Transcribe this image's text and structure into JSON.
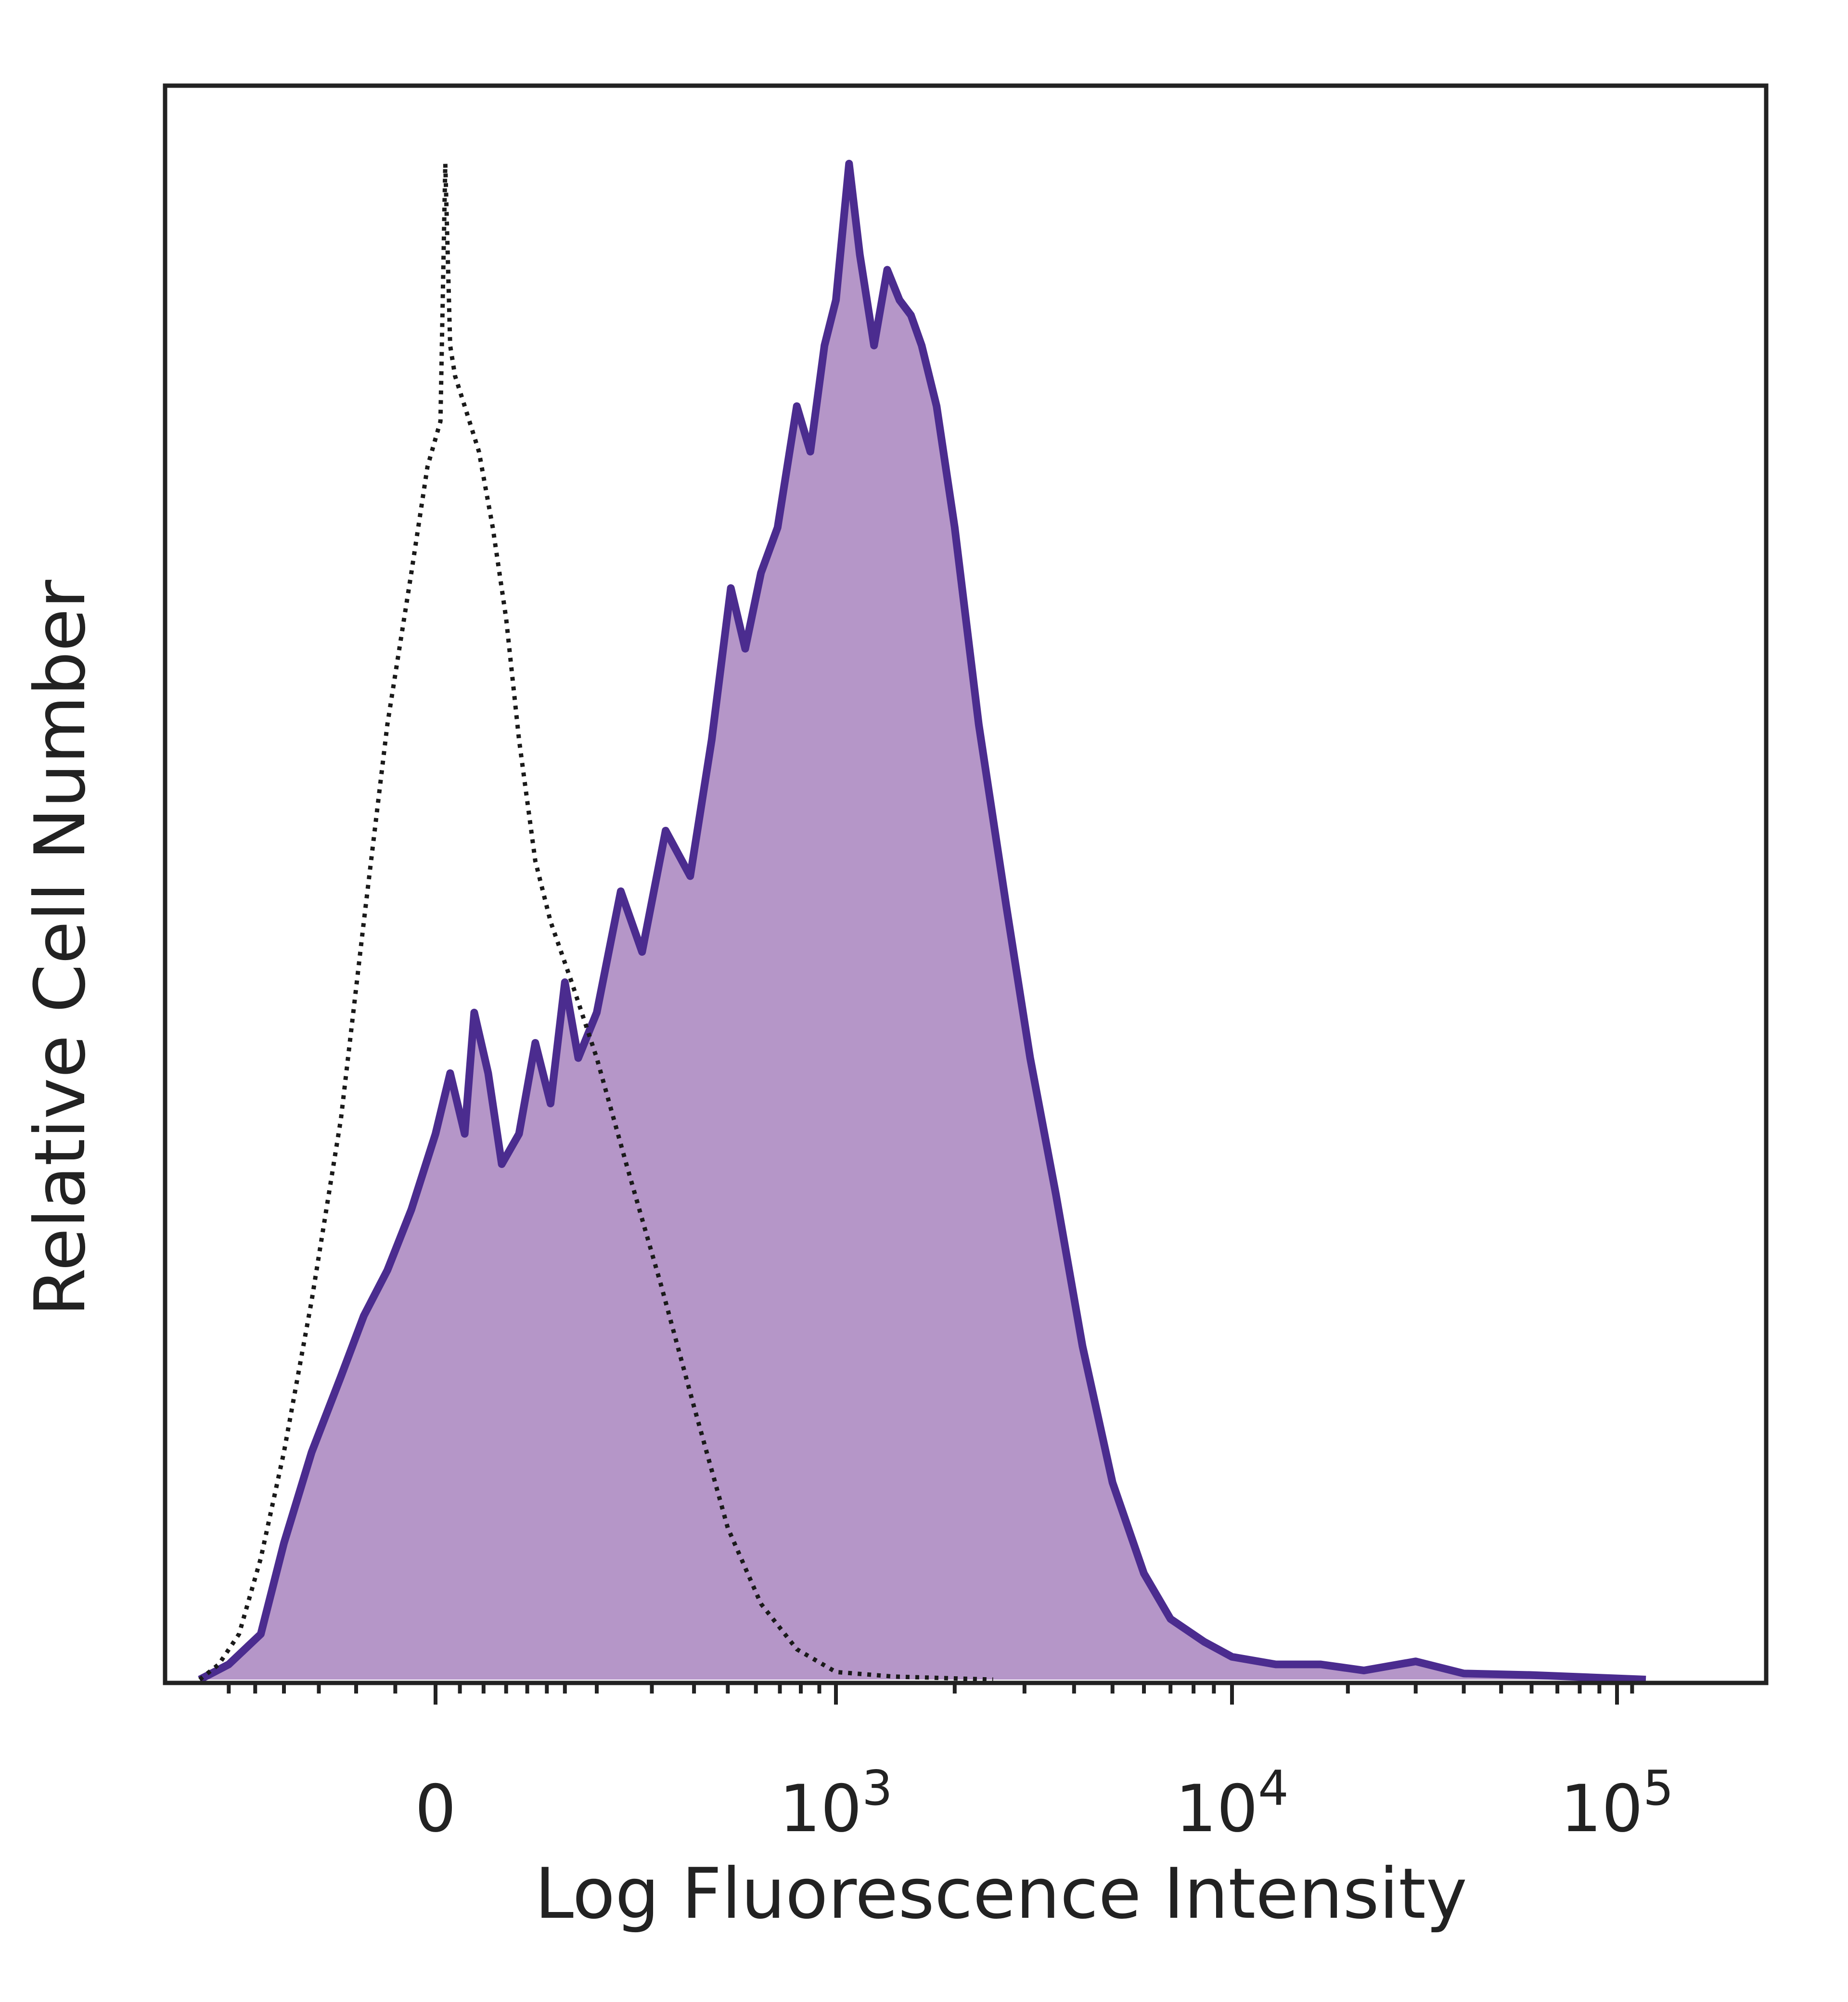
{
  "chart_data": {
    "type": "area",
    "xlabel": "Log Fluorescence Intensity",
    "ylabel": "Relative Cell Number",
    "x_scale": "biexponential",
    "x_ticks": [
      {
        "value": 0,
        "base": "0",
        "exp": ""
      },
      {
        "value": 1000,
        "base": "10",
        "exp": "3"
      },
      {
        "value": 10000,
        "base": "10",
        "exp": "4"
      },
      {
        "value": 100000,
        "base": "10",
        "exp": "5"
      }
    ],
    "ylim": [
      0,
      100
    ],
    "grid": false,
    "legend": "none",
    "colors": {
      "stained_line": "#4b2c8f",
      "stained_fill": "#b596c8",
      "control_line": "#1a1a1a",
      "frame": "#222222"
    },
    "series": [
      {
        "style": "filled-solid",
        "points": [
          [
            -180,
            0
          ],
          [
            -150,
            1
          ],
          [
            -120,
            3
          ],
          [
            -100,
            9
          ],
          [
            -80,
            15
          ],
          [
            -60,
            20
          ],
          [
            -45,
            24
          ],
          [
            -30,
            27
          ],
          [
            -15,
            31
          ],
          [
            0,
            36
          ],
          [
            15,
            40
          ],
          [
            30,
            36
          ],
          [
            40,
            44
          ],
          [
            55,
            40
          ],
          [
            70,
            34
          ],
          [
            90,
            36
          ],
          [
            110,
            42
          ],
          [
            130,
            38
          ],
          [
            150,
            46
          ],
          [
            170,
            41
          ],
          [
            200,
            44
          ],
          [
            240,
            52
          ],
          [
            280,
            48
          ],
          [
            330,
            56
          ],
          [
            390,
            53
          ],
          [
            450,
            62
          ],
          [
            510,
            72
          ],
          [
            560,
            68
          ],
          [
            620,
            73
          ],
          [
            690,
            76
          ],
          [
            780,
            84
          ],
          [
            850,
            81
          ],
          [
            930,
            88
          ],
          [
            1000,
            91
          ],
          [
            1080,
            100
          ],
          [
            1150,
            94
          ],
          [
            1250,
            88
          ],
          [
            1350,
            93
          ],
          [
            1450,
            91
          ],
          [
            1550,
            90
          ],
          [
            1650,
            88
          ],
          [
            1800,
            84
          ],
          [
            2000,
            76
          ],
          [
            2300,
            63
          ],
          [
            2700,
            51
          ],
          [
            3100,
            41
          ],
          [
            3600,
            32
          ],
          [
            4200,
            22
          ],
          [
            5000,
            13
          ],
          [
            6000,
            7
          ],
          [
            7000,
            4
          ],
          [
            8500,
            2.5
          ],
          [
            10000,
            1.5
          ],
          [
            13000,
            1
          ],
          [
            17000,
            1
          ],
          [
            22000,
            0.6
          ],
          [
            30000,
            1.2
          ],
          [
            40000,
            0.4
          ],
          [
            60000,
            0.3
          ],
          [
            120000,
            0
          ]
        ]
      },
      {
        "style": "dotted",
        "points": [
          [
            -180,
            0
          ],
          [
            -160,
            1
          ],
          [
            -140,
            3
          ],
          [
            -120,
            8
          ],
          [
            -100,
            15
          ],
          [
            -80,
            25
          ],
          [
            -60,
            37
          ],
          [
            -45,
            50
          ],
          [
            -30,
            63
          ],
          [
            -15,
            73
          ],
          [
            -5,
            80
          ],
          [
            5,
            83
          ],
          [
            10,
            100
          ],
          [
            15,
            88
          ],
          [
            20,
            86
          ],
          [
            30,
            84
          ],
          [
            45,
            81
          ],
          [
            60,
            76
          ],
          [
            75,
            70
          ],
          [
            90,
            62
          ],
          [
            110,
            54
          ],
          [
            130,
            50
          ],
          [
            160,
            46
          ],
          [
            200,
            41
          ],
          [
            250,
            34
          ],
          [
            320,
            26
          ],
          [
            400,
            18
          ],
          [
            500,
            10
          ],
          [
            620,
            5
          ],
          [
            780,
            2
          ],
          [
            1000,
            0.5
          ],
          [
            1400,
            0.2
          ],
          [
            2500,
            0
          ]
        ]
      }
    ]
  }
}
